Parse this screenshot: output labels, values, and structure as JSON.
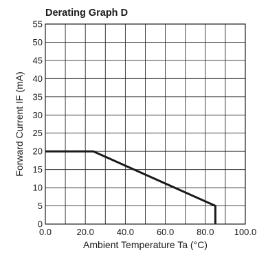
{
  "chart_data": {
    "type": "line",
    "title": "Derating Graph D",
    "xlabel": "Ambient Temperature Ta (°C)",
    "ylabel": "Forward Current IF (mA)",
    "xlim": [
      0,
      100
    ],
    "ylim": [
      0,
      55
    ],
    "x_tick_labels": [
      "0.0",
      "20.0",
      "40.0",
      "60.0",
      "80.0",
      "100.0"
    ],
    "y_tick_labels": [
      "0",
      "5",
      "10",
      "15",
      "20",
      "25",
      "30",
      "35",
      "40",
      "45",
      "50",
      "55"
    ],
    "x_gridlines": [
      0,
      10,
      20,
      30,
      40,
      50,
      60,
      70,
      80,
      90,
      100
    ],
    "y_gridlines": [
      0,
      5,
      10,
      15,
      20,
      25,
      30,
      35,
      40,
      45,
      50,
      55
    ],
    "grid": true,
    "legend": "none",
    "series": [
      {
        "x": [
          0,
          24,
          85,
          85
        ],
        "y": [
          20,
          20,
          5,
          0
        ],
        "color": "#1a1a1a"
      }
    ]
  }
}
